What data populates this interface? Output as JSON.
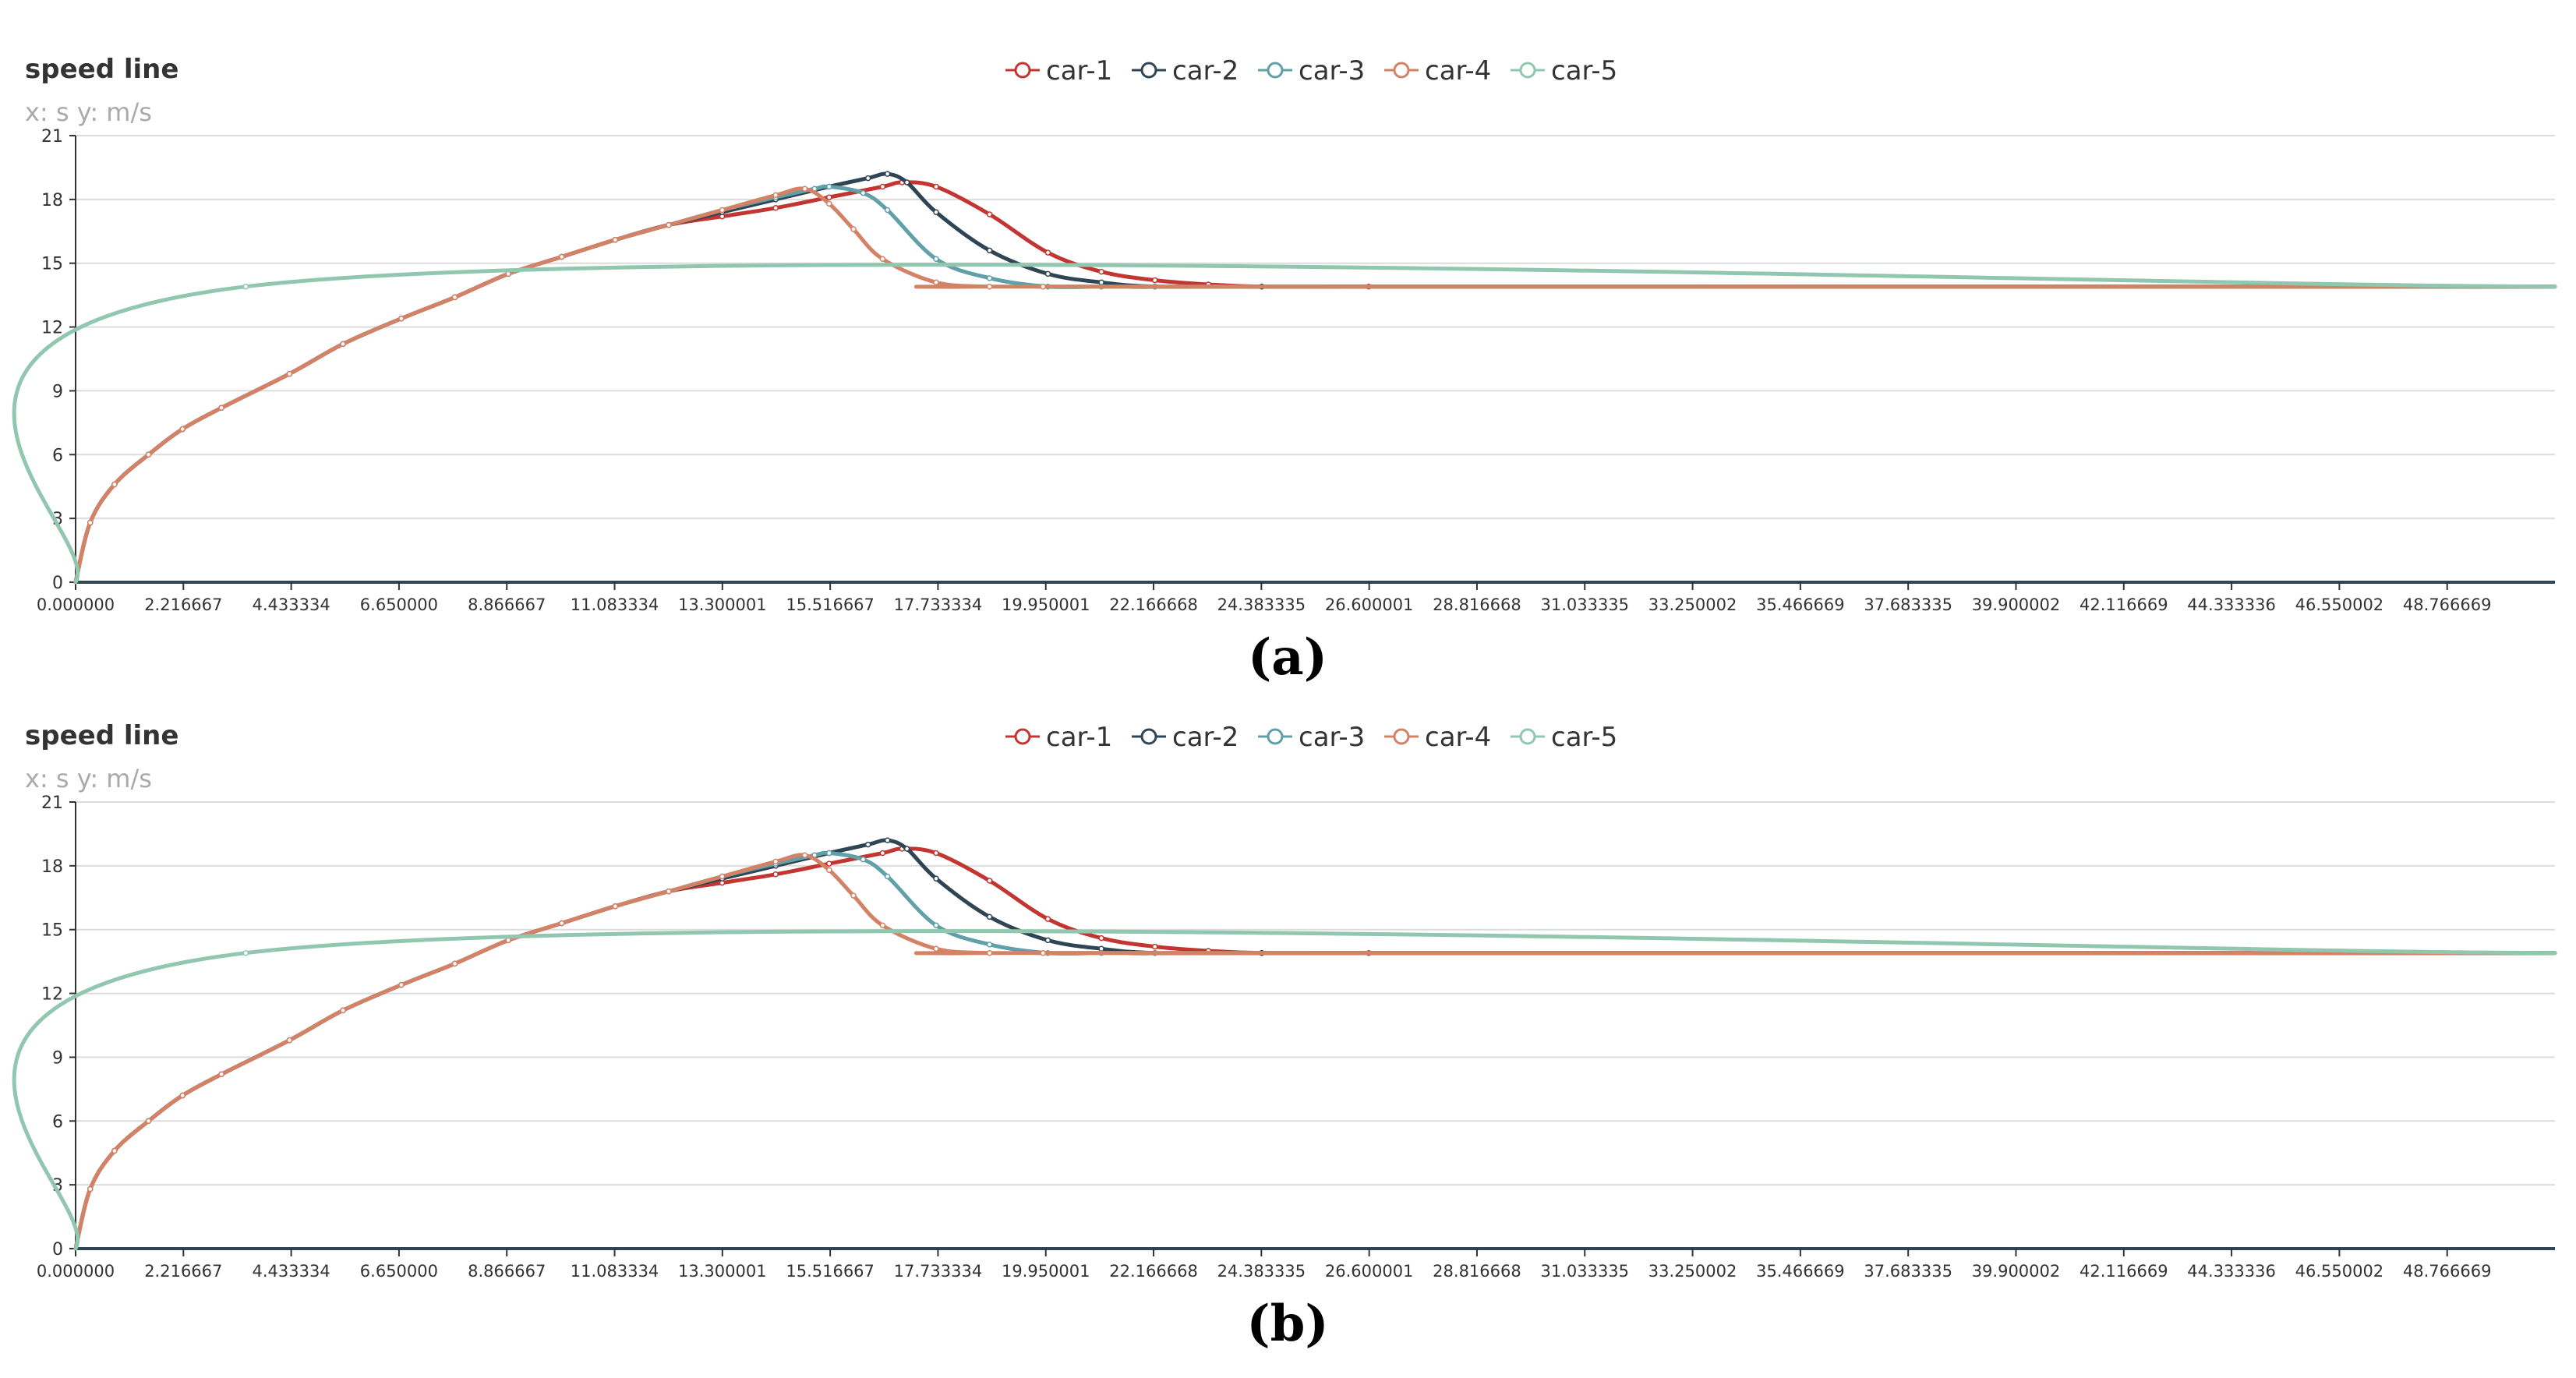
{
  "chart_data": [
    {
      "type": "line",
      "panel_label": "(a)",
      "title": "speed line",
      "subtitle": "x: s  y: m/s",
      "legend": {
        "placement": "top-center"
      },
      "ylim": [
        0,
        21
      ],
      "yticks": [
        "0",
        "3",
        "6",
        "9",
        "12",
        "15",
        "18",
        "21"
      ],
      "grid": true,
      "xlim": [
        0,
        51
      ],
      "xticks": [
        "0.000000",
        "2.216667",
        "4.433334",
        "6.650000",
        "8.866667",
        "11.083334",
        "13.300001",
        "15.516667",
        "17.733334",
        "19.950001",
        "22.166668",
        "24.383335",
        "26.600001",
        "28.816668",
        "31.033335",
        "33.250002",
        "35.466669",
        "37.683335",
        "39.900002",
        "42.116669",
        "44.333336",
        "46.550002",
        "48.766669"
      ],
      "series": [
        {
          "name": "car-1",
          "color": "#c23531",
          "x": [
            0,
            0.3,
            0.8,
            1.5,
            2.2,
            3.0,
            4.4,
            5.5,
            6.7,
            7.8,
            8.9,
            10.0,
            11.1,
            12.2,
            13.3,
            14.4,
            15.5,
            16.6,
            17.0,
            17.7,
            18.8,
            20.0,
            21.1,
            22.2,
            23.3,
            24.4,
            26.6,
            51
          ],
          "y": [
            0,
            2.8,
            4.6,
            6.0,
            7.2,
            8.2,
            9.8,
            11.2,
            12.4,
            13.4,
            14.5,
            15.3,
            16.1,
            16.8,
            17.2,
            17.6,
            18.1,
            18.6,
            18.8,
            18.6,
            17.3,
            15.5,
            14.6,
            14.2,
            14.0,
            13.9,
            13.9,
            13.9
          ]
        },
        {
          "name": "car-2",
          "color": "#2f4554",
          "x": [
            0,
            0.3,
            0.8,
            1.5,
            2.2,
            3.0,
            4.4,
            5.5,
            6.7,
            7.8,
            8.9,
            10.0,
            11.1,
            12.2,
            13.3,
            14.4,
            15.5,
            16.3,
            16.7,
            17.1,
            17.7,
            18.8,
            20.0,
            21.1,
            22.2,
            24.4,
            51
          ],
          "y": [
            0,
            2.8,
            4.6,
            6.0,
            7.2,
            8.2,
            9.8,
            11.2,
            12.4,
            13.4,
            14.5,
            15.3,
            16.1,
            16.8,
            17.4,
            18.0,
            18.6,
            19.0,
            19.2,
            18.8,
            17.4,
            15.6,
            14.5,
            14.1,
            13.9,
            13.9,
            13.9
          ]
        },
        {
          "name": "car-3",
          "color": "#61a0a8",
          "x": [
            0,
            0.3,
            0.8,
            1.5,
            2.2,
            3.0,
            4.4,
            5.5,
            6.7,
            7.8,
            8.9,
            10.0,
            11.1,
            12.2,
            13.3,
            14.4,
            15.2,
            15.5,
            16.2,
            16.7,
            17.7,
            18.8,
            20.0,
            21.1,
            22.2,
            51
          ],
          "y": [
            0,
            2.8,
            4.6,
            6.0,
            7.2,
            8.2,
            9.8,
            11.2,
            12.4,
            13.4,
            14.5,
            15.3,
            16.1,
            16.8,
            17.5,
            18.1,
            18.5,
            18.6,
            18.3,
            17.5,
            15.2,
            14.3,
            13.9,
            13.9,
            13.9,
            13.9
          ]
        },
        {
          "name": "car-4",
          "color": "#d48265",
          "x": [
            0,
            0.3,
            0.8,
            1.5,
            2.2,
            3.0,
            4.4,
            5.5,
            6.7,
            7.8,
            8.9,
            10.0,
            11.1,
            12.2,
            13.3,
            14.4,
            15.0,
            15.5,
            16.0,
            16.6,
            17.7,
            18.8,
            19.9,
            51
          ],
          "y": [
            0,
            2.8,
            4.6,
            6.0,
            7.2,
            8.2,
            9.8,
            11.2,
            12.4,
            13.4,
            14.5,
            15.3,
            16.1,
            16.8,
            17.5,
            18.2,
            18.5,
            17.8,
            16.6,
            15.2,
            14.1,
            13.9,
            13.9,
            13.9
          ]
        },
        {
          "name": "car-5",
          "color": "#91c7ae",
          "x": [
            0,
            3.5,
            51
          ],
          "y": [
            0,
            13.9,
            13.9
          ]
        }
      ]
    },
    {
      "type": "line",
      "panel_label": "(b)",
      "title": "speed line",
      "subtitle": "x: s  y: m/s",
      "legend": {
        "placement": "top-center"
      },
      "ylim": [
        0,
        21
      ],
      "yticks": [
        "0",
        "3",
        "6",
        "9",
        "12",
        "15",
        "18",
        "21"
      ],
      "grid": true,
      "xlim": [
        0,
        51
      ],
      "xticks": [
        "0.000000",
        "2.216667",
        "4.433334",
        "6.650000",
        "8.866667",
        "11.083334",
        "13.300001",
        "15.516667",
        "17.733334",
        "19.950001",
        "22.166668",
        "24.383335",
        "26.600001",
        "28.816668",
        "31.033335",
        "33.250002",
        "35.466669",
        "37.683335",
        "39.900002",
        "42.116669",
        "44.333336",
        "46.550002",
        "48.766669"
      ],
      "series": [
        {
          "name": "car-1",
          "color": "#c23531",
          "x": [
            0,
            0.3,
            0.8,
            1.5,
            2.2,
            3.0,
            4.4,
            5.5,
            6.7,
            7.8,
            8.9,
            10.0,
            11.1,
            12.2,
            13.3,
            14.4,
            15.5,
            16.6,
            17.0,
            17.7,
            18.8,
            20.0,
            21.1,
            22.2,
            23.3,
            24.4,
            26.6,
            51
          ],
          "y": [
            0,
            2.8,
            4.6,
            6.0,
            7.2,
            8.2,
            9.8,
            11.2,
            12.4,
            13.4,
            14.5,
            15.3,
            16.1,
            16.8,
            17.2,
            17.6,
            18.1,
            18.6,
            18.8,
            18.6,
            17.3,
            15.5,
            14.6,
            14.2,
            14.0,
            13.9,
            13.9,
            13.9
          ]
        },
        {
          "name": "car-2",
          "color": "#2f4554",
          "x": [
            0,
            0.3,
            0.8,
            1.5,
            2.2,
            3.0,
            4.4,
            5.5,
            6.7,
            7.8,
            8.9,
            10.0,
            11.1,
            12.2,
            13.3,
            14.4,
            15.5,
            16.3,
            16.7,
            17.1,
            17.7,
            18.8,
            20.0,
            21.1,
            22.2,
            24.4,
            51
          ],
          "y": [
            0,
            2.8,
            4.6,
            6.0,
            7.2,
            8.2,
            9.8,
            11.2,
            12.4,
            13.4,
            14.5,
            15.3,
            16.1,
            16.8,
            17.4,
            18.0,
            18.6,
            19.0,
            19.2,
            18.8,
            17.4,
            15.6,
            14.5,
            14.1,
            13.9,
            13.9,
            13.9
          ]
        },
        {
          "name": "car-3",
          "color": "#61a0a8",
          "x": [
            0,
            0.3,
            0.8,
            1.5,
            2.2,
            3.0,
            4.4,
            5.5,
            6.7,
            7.8,
            8.9,
            10.0,
            11.1,
            12.2,
            13.3,
            14.4,
            15.2,
            15.5,
            16.2,
            16.7,
            17.7,
            18.8,
            20.0,
            21.1,
            22.2,
            51
          ],
          "y": [
            0,
            2.8,
            4.6,
            6.0,
            7.2,
            8.2,
            9.8,
            11.2,
            12.4,
            13.4,
            14.5,
            15.3,
            16.1,
            16.8,
            17.5,
            18.1,
            18.5,
            18.6,
            18.3,
            17.5,
            15.2,
            14.3,
            13.9,
            13.9,
            13.9,
            13.9
          ]
        },
        {
          "name": "car-4",
          "color": "#d48265",
          "x": [
            0,
            0.3,
            0.8,
            1.5,
            2.2,
            3.0,
            4.4,
            5.5,
            6.7,
            7.8,
            8.9,
            10.0,
            11.1,
            12.2,
            13.3,
            14.4,
            15.0,
            15.5,
            16.0,
            16.6,
            17.7,
            18.8,
            19.9,
            51
          ],
          "y": [
            0,
            2.8,
            4.6,
            6.0,
            7.2,
            8.2,
            9.8,
            11.2,
            12.4,
            13.4,
            14.5,
            15.3,
            16.1,
            16.8,
            17.5,
            18.2,
            18.5,
            17.8,
            16.6,
            15.2,
            14.1,
            13.9,
            13.9,
            13.9
          ]
        },
        {
          "name": "car-5",
          "color": "#91c7ae",
          "x": [
            0,
            3.5,
            51
          ],
          "y": [
            0,
            13.9,
            13.9
          ]
        }
      ]
    }
  ]
}
